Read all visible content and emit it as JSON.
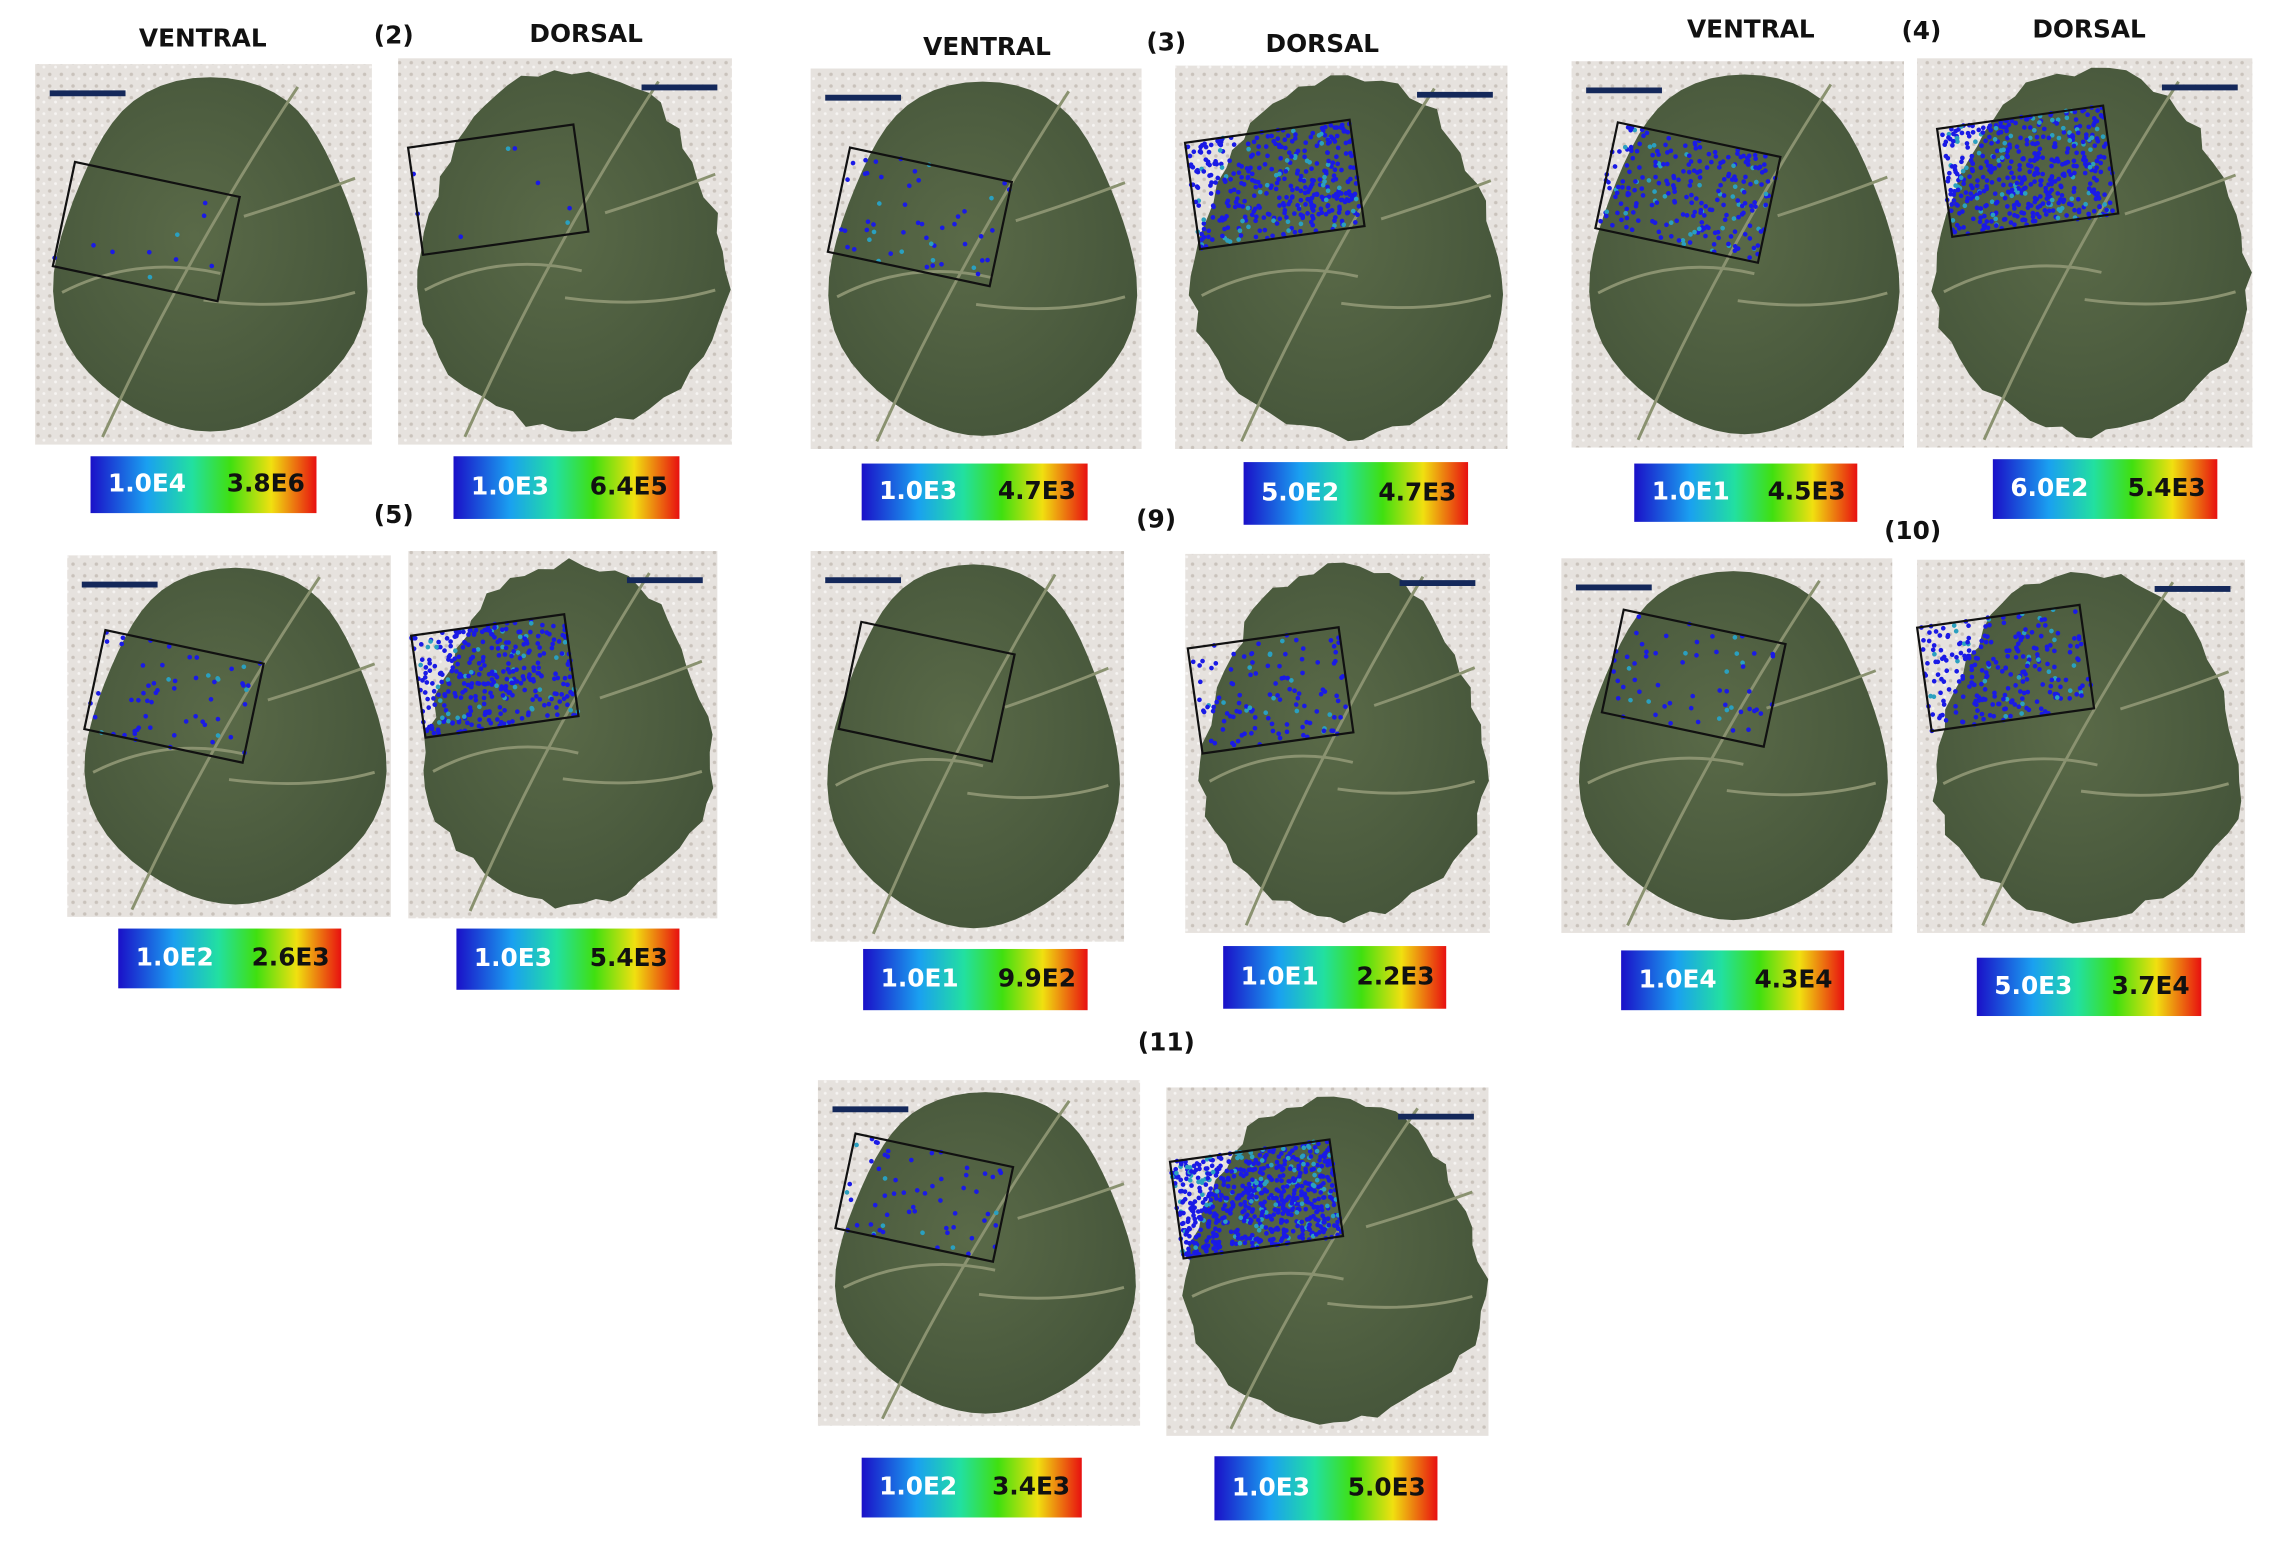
{
  "headers": {
    "ventral": "VENTRAL",
    "dorsal": "DORSAL"
  },
  "panels": [
    {
      "label": "(2)",
      "ventral": {
        "min": "1.0E4",
        "max": "3.8E6"
      },
      "dorsal": {
        "min": "1.0E3",
        "max": "6.4E5"
      }
    },
    {
      "label": "(3)",
      "ventral": {
        "min": "1.0E3",
        "max": "4.7E3"
      },
      "dorsal": {
        "min": "5.0E2",
        "max": "4.7E3"
      }
    },
    {
      "label": "(4)",
      "ventral": {
        "min": "1.0E1",
        "max": "4.5E3"
      },
      "dorsal": {
        "min": "6.0E2",
        "max": "5.4E3"
      }
    },
    {
      "label": "(5)",
      "ventral": {
        "min": "1.0E2",
        "max": "2.6E3"
      },
      "dorsal": {
        "min": "1.0E3",
        "max": "5.4E3"
      }
    },
    {
      "label": "(9)",
      "ventral": {
        "min": "1.0E1",
        "max": "9.9E2"
      },
      "dorsal": {
        "min": "1.0E1",
        "max": "2.2E3"
      }
    },
    {
      "label": "(10)",
      "ventral": {
        "min": "1.0E4",
        "max": "4.3E4"
      },
      "dorsal": {
        "min": "5.0E3",
        "max": "3.7E4"
      }
    },
    {
      "label": "(11)",
      "ventral": {
        "min": "1.0E2",
        "max": "3.4E3"
      },
      "dorsal": {
        "min": "1.0E3",
        "max": "5.0E3"
      }
    }
  ]
}
